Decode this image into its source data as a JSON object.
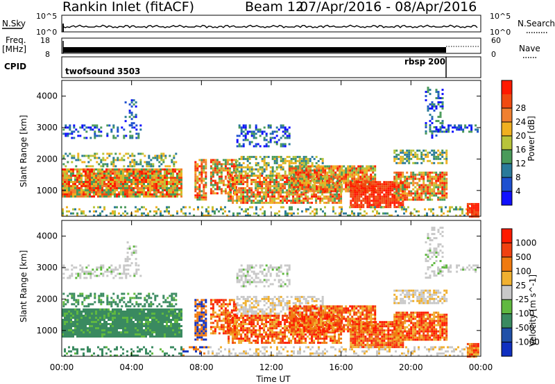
{
  "header": {
    "station": "Rankin Inlet (fitACF)",
    "beam": "Beam 12",
    "date_range": "07/Apr/2016 - 08/Apr/2016"
  },
  "panels": {
    "nsky": {
      "left_label": "N.Sky",
      "left_ticks": [
        "10^5",
        "10^0"
      ],
      "right_ticks": [
        "10^5",
        "10^0"
      ],
      "right_label": "N.Search"
    },
    "freq": {
      "left_label_1": "Freq.",
      "left_label_2": "[MHz]",
      "left_ticks": [
        "18",
        "8"
      ],
      "right_ticks": [
        "60",
        "0"
      ],
      "right_label": "Nave"
    },
    "cpid": {
      "label": "CPID",
      "modes": [
        {
          "name": "twofsound",
          "id": "3503"
        },
        {
          "name": "rbsp",
          "id": "200"
        }
      ]
    }
  },
  "chart_data": [
    {
      "type": "heatmap",
      "title": "",
      "xlabel": "Time UT",
      "ylabel": "Slant Range [km]",
      "x_ticks": [
        "00:00",
        "04:00",
        "08:00",
        "12:00",
        "16:00",
        "20:00",
        "00:00"
      ],
      "y_ticks": [
        "1000",
        "2000",
        "3000",
        "4000"
      ],
      "ylim": [
        180,
        4500
      ],
      "colorbar": {
        "label": "Power [dB]",
        "ticks": [
          "4",
          "8",
          "12",
          "16",
          "20",
          "24",
          "28"
        ],
        "colors": [
          "#1010ff",
          "#1e50d0",
          "#2a7a9a",
          "#4a9a5a",
          "#b8c43a",
          "#f0b020",
          "#f08030",
          "#f04a10",
          "#ff1a00"
        ]
      }
    },
    {
      "type": "heatmap",
      "title": "",
      "xlabel": "Time UT",
      "ylabel": "Slant Range [km]",
      "x_ticks": [
        "00:00",
        "04:00",
        "08:00",
        "12:00",
        "16:00",
        "20:00",
        "00:00"
      ],
      "y_ticks": [
        "1000",
        "2000",
        "3000",
        "4000"
      ],
      "ylim": [
        180,
        4500
      ],
      "colorbar": {
        "label": "Velocity [m s^-1]",
        "ticks": [
          "1000",
          "500",
          "100",
          "25",
          "-25",
          "-100",
          "-500",
          "-1000"
        ],
        "colors": [
          "#1030c0",
          "#2050a8",
          "#3a8a60",
          "#60b840",
          "#c8c8c8",
          "#f0b030",
          "#f07a10",
          "#f04010",
          "#ff1a00"
        ]
      }
    }
  ]
}
